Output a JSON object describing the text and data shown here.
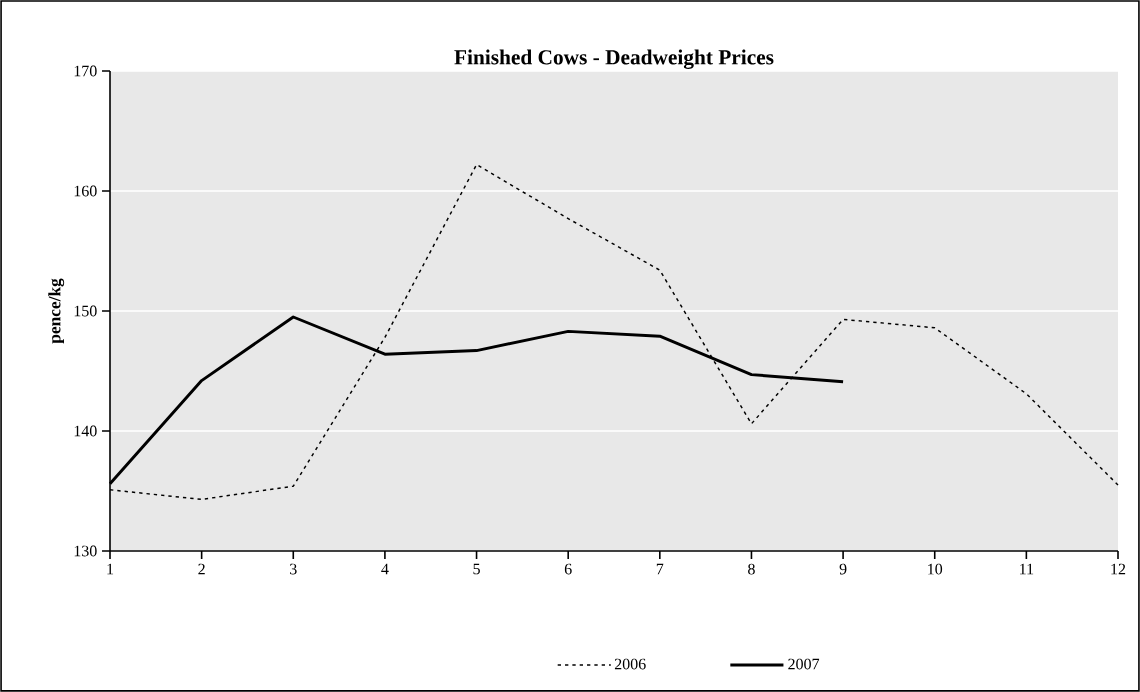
{
  "chart_data": {
    "type": "line",
    "title": "Finished Cows - Deadweight Prices",
    "ylabel": "pence/kg",
    "categories": [
      "1",
      "2",
      "3",
      "4",
      "5",
      "6",
      "7",
      "8",
      "9",
      "10",
      "11",
      "12"
    ],
    "series": [
      {
        "name": "2006",
        "color": "#000000",
        "line_style": "dotted",
        "values": [
          135.1,
          134.3,
          135.4,
          147.8,
          162.2,
          157.7,
          153.4,
          140.6,
          149.3,
          148.6,
          143.1,
          135.5
        ]
      },
      {
        "name": "2007",
        "color": "#000000",
        "line_style": "solid",
        "values": [
          135.6,
          144.2,
          149.5,
          146.4,
          146.7,
          148.3,
          147.9,
          144.7,
          144.1,
          null,
          null,
          null
        ]
      }
    ],
    "ylim": [
      130,
      170
    ],
    "yticks": [
      130,
      140,
      150,
      160,
      170
    ],
    "grid": "y",
    "legend": "bottom",
    "marker": "none"
  }
}
